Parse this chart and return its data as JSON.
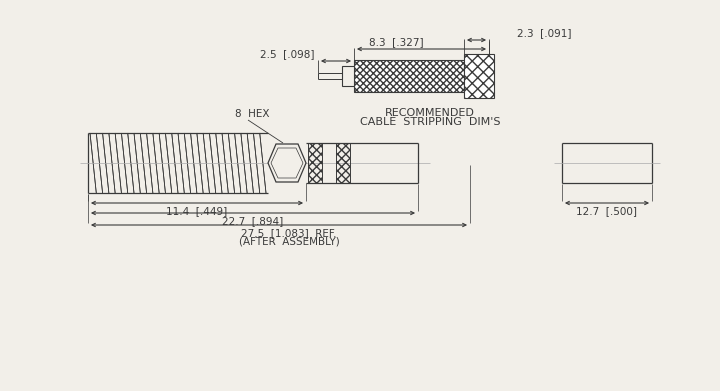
{
  "bg_color": "#f2efe9",
  "line_color": "#3a3a3a",
  "dim_fontsize": 7.5,
  "label_fontsize": 7.5,
  "title_fontsize": 8,
  "annotations": {
    "hex_label": "8  HEX",
    "dim_11_4": "11.4  [.449]",
    "dim_22_7": "22.7  [.894]",
    "dim_27_5": "27.5  [1.083]  REF.",
    "dim_27_5b": "(AFTER  ASSEMBLY)",
    "dim_12_7": "12.7  [.500]",
    "dim_2_3": "2.3  [.091]",
    "dim_2_5": "2.5  [.098]",
    "dim_8_3": "8.3  [.327]",
    "title_line1": "RECOMMENDED",
    "title_line2": "CABLE  STRIPPING  DIM'S"
  }
}
